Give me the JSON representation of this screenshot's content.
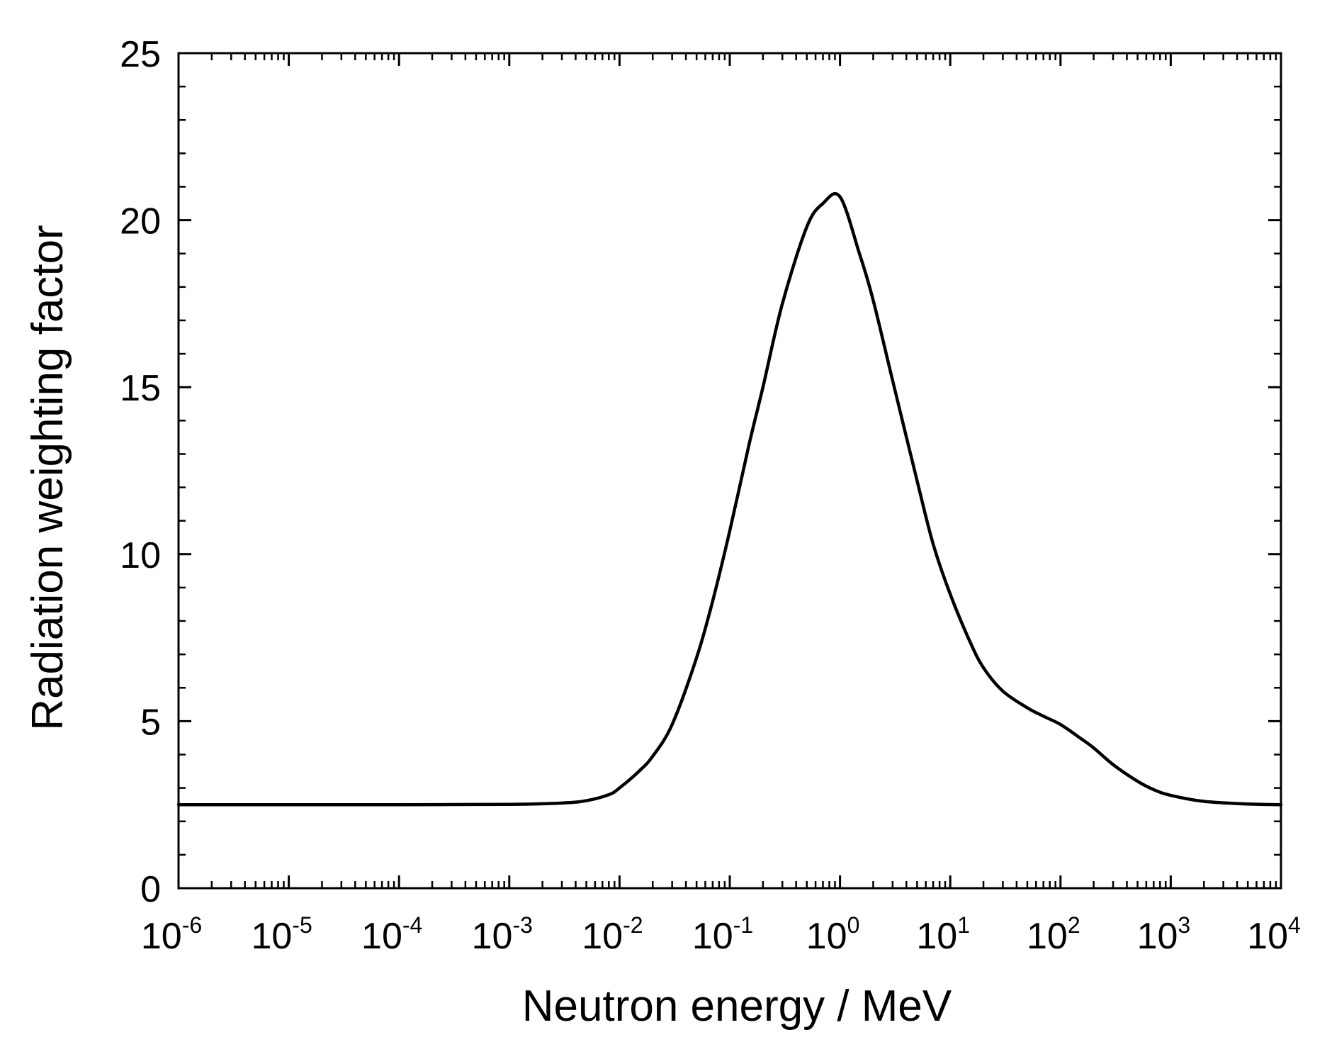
{
  "chart_data": {
    "type": "line",
    "title": "",
    "xlabel": "Neutron energy / MeV",
    "ylabel": "Radiation weighting factor",
    "xscale": "log",
    "xlim": [
      1e-06,
      10000.0
    ],
    "ylim": [
      0,
      25
    ],
    "grid": false,
    "legend": "none",
    "x_ticks": [
      {
        "exp": -6,
        "base": "10",
        "sup": "-6"
      },
      {
        "exp": -5,
        "base": "10",
        "sup": "-5"
      },
      {
        "exp": -4,
        "base": "10",
        "sup": "-4"
      },
      {
        "exp": -3,
        "base": "10",
        "sup": "-3"
      },
      {
        "exp": -2,
        "base": "10",
        "sup": "-2"
      },
      {
        "exp": -1,
        "base": "10",
        "sup": "-1"
      },
      {
        "exp": 0,
        "base": "10",
        "sup": "0"
      },
      {
        "exp": 1,
        "base": "10",
        "sup": "1"
      },
      {
        "exp": 2,
        "base": "10",
        "sup": "2"
      },
      {
        "exp": 3,
        "base": "10",
        "sup": "3"
      },
      {
        "exp": 4,
        "base": "10",
        "sup": "4"
      }
    ],
    "y_ticks": [
      {
        "value": 0,
        "label": "0"
      },
      {
        "value": 5,
        "label": "5"
      },
      {
        "value": 10,
        "label": "10"
      },
      {
        "value": 15,
        "label": "15"
      },
      {
        "value": 20,
        "label": "20"
      },
      {
        "value": 25,
        "label": "25"
      }
    ],
    "series": [
      {
        "name": "Radiation weighting factor",
        "color": "#000000",
        "x": [
          1e-06,
          1e-05,
          0.0001,
          0.001,
          0.003,
          0.005,
          0.008,
          0.01,
          0.015,
          0.02,
          0.03,
          0.05,
          0.07,
          0.1,
          0.15,
          0.2,
          0.3,
          0.5,
          0.7,
          1.0,
          1.5,
          2,
          3,
          5,
          7,
          10,
          15,
          20,
          30,
          50,
          70,
          100,
          150,
          200,
          300,
          500,
          700,
          1000,
          2000,
          5000,
          10000
        ],
        "y": [
          2.5,
          2.5,
          2.5,
          2.51,
          2.55,
          2.62,
          2.8,
          3.0,
          3.5,
          3.95,
          4.9,
          6.9,
          8.6,
          10.7,
          13.3,
          15.0,
          17.5,
          19.8,
          20.5,
          20.7,
          19.0,
          17.6,
          15.2,
          12.2,
          10.3,
          8.8,
          7.4,
          6.6,
          5.9,
          5.4,
          5.15,
          4.9,
          4.5,
          4.2,
          3.7,
          3.2,
          2.95,
          2.78,
          2.6,
          2.52,
          2.5
        ]
      }
    ]
  }
}
